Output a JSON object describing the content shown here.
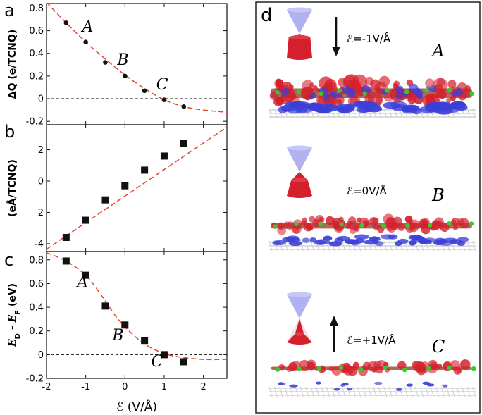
{
  "panels": [
    {
      "label": "a"
    },
    {
      "label": "b"
    },
    {
      "label": "c"
    },
    {
      "label": "d"
    }
  ],
  "chart_data": [
    {
      "type": "scatter",
      "panel": "a",
      "ylabel": "ΔQ (e/TCNQ)",
      "xlim": [
        -2,
        2.6
      ],
      "ylim": [
        -0.23,
        0.84
      ],
      "yticks": [
        -0.2,
        0,
        0.2,
        0.4,
        0.6,
        0.8
      ],
      "points": [
        {
          "x": -1.5,
          "y": 0.67
        },
        {
          "x": -1.0,
          "y": 0.5
        },
        {
          "x": -0.5,
          "y": 0.32
        },
        {
          "x": 0.0,
          "y": 0.2
        },
        {
          "x": 0.5,
          "y": 0.07
        },
        {
          "x": 1.0,
          "y": -0.01
        },
        {
          "x": 1.5,
          "y": -0.07
        }
      ],
      "fit": [
        {
          "x": -2.0,
          "y": 0.85
        },
        {
          "x": -1.5,
          "y": 0.67
        },
        {
          "x": -1.0,
          "y": 0.5
        },
        {
          "x": -0.5,
          "y": 0.35
        },
        {
          "x": 0.0,
          "y": 0.21
        },
        {
          "x": 0.5,
          "y": 0.09
        },
        {
          "x": 1.0,
          "y": -0.01
        },
        {
          "x": 1.5,
          "y": -0.07
        },
        {
          "x": 2.0,
          "y": -0.1
        },
        {
          "x": 2.6,
          "y": -0.12
        }
      ],
      "reference_line": {
        "y": 0,
        "style": "dashed"
      },
      "annotations": [
        {
          "text": "A",
          "x": -0.95,
          "y": 0.59
        },
        {
          "text": "B",
          "x": -0.05,
          "y": 0.3
        },
        {
          "text": "C",
          "x": 0.95,
          "y": 0.08
        }
      ]
    },
    {
      "type": "scatter",
      "panel": "b",
      "ylabel": "(eÅ/TCNQ)",
      "xlim": [
        -2,
        2.6
      ],
      "ylim": [
        -4.5,
        3.6
      ],
      "yticks": [
        -4,
        -2,
        0,
        2
      ],
      "points": [
        {
          "x": -1.5,
          "y": -3.6
        },
        {
          "x": -1.0,
          "y": -2.5
        },
        {
          "x": -0.5,
          "y": -1.2
        },
        {
          "x": 0.0,
          "y": -0.3
        },
        {
          "x": 0.5,
          "y": 0.7
        },
        {
          "x": 1.0,
          "y": 1.6
        },
        {
          "x": 1.5,
          "y": 2.4
        }
      ],
      "fit": [
        {
          "x": -2.0,
          "y": -4.35
        },
        {
          "x": 2.6,
          "y": 3.45
        }
      ]
    },
    {
      "type": "scatter",
      "panel": "c",
      "ylabel": "E_D - E_F (eV)",
      "xlabel": "ℰ (V/Å)",
      "xlim": [
        -2,
        2.6
      ],
      "ylim": [
        -0.2,
        0.87
      ],
      "xticks": [
        -2,
        -1,
        0,
        1,
        2
      ],
      "yticks": [
        -0.2,
        0,
        0.2,
        0.4,
        0.6,
        0.8
      ],
      "points": [
        {
          "x": -1.5,
          "y": 0.79
        },
        {
          "x": -1.0,
          "y": 0.67
        },
        {
          "x": -0.5,
          "y": 0.41
        },
        {
          "x": 0.0,
          "y": 0.25
        },
        {
          "x": 0.5,
          "y": 0.12
        },
        {
          "x": 1.0,
          "y": 0.0
        },
        {
          "x": 1.5,
          "y": -0.06
        }
      ],
      "fit": [
        {
          "x": -2.0,
          "y": 0.86
        },
        {
          "x": -1.5,
          "y": 0.79
        },
        {
          "x": -1.0,
          "y": 0.67
        },
        {
          "x": -0.6,
          "y": 0.5
        },
        {
          "x": -0.2,
          "y": 0.31
        },
        {
          "x": 0.2,
          "y": 0.17
        },
        {
          "x": 0.6,
          "y": 0.07
        },
        {
          "x": 1.0,
          "y": 0.01
        },
        {
          "x": 1.4,
          "y": -0.02
        },
        {
          "x": 2.0,
          "y": -0.04
        },
        {
          "x": 2.6,
          "y": -0.04
        }
      ],
      "reference_line": {
        "y": 0,
        "style": "dashed"
      },
      "annotations": [
        {
          "text": "A",
          "x": -1.08,
          "y": 0.57
        },
        {
          "text": "B",
          "x": -0.18,
          "y": 0.12
        },
        {
          "text": "C",
          "x": 0.82,
          "y": -0.1
        }
      ]
    }
  ],
  "structures": [
    {
      "field_text": "ℰ=-1V/Å",
      "label": "A",
      "arrow": "down"
    },
    {
      "field_text": "ℰ=0V/Å",
      "label": "B",
      "arrow": "none"
    },
    {
      "field_text": "ℰ=+1V/Å",
      "label": "C",
      "arrow": "up"
    }
  ],
  "colors": {
    "fit": "#e0452a",
    "marker": "#111111",
    "electron_gain": "#d4202c",
    "electron_loss": "#3b3fd8",
    "dirac_cone_upper": "#a8a8f0"
  }
}
